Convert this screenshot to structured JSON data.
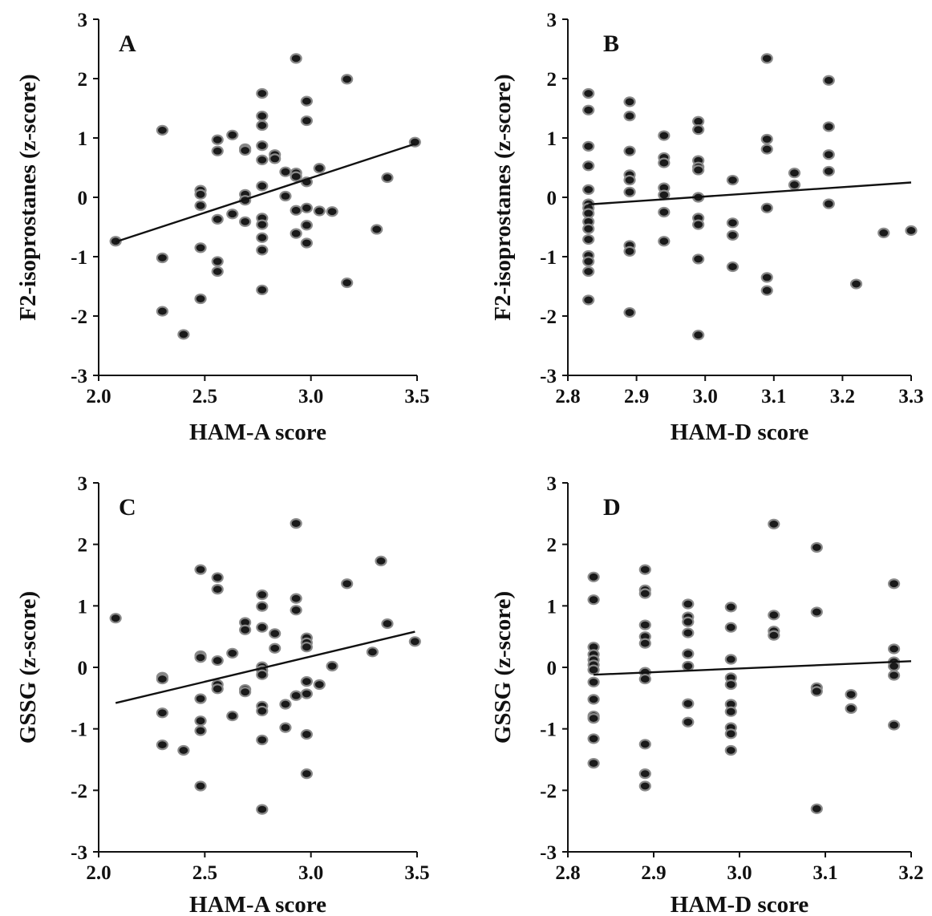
{
  "chart_data": [
    {
      "id": "A",
      "type": "scatter",
      "panel_label": "A",
      "xlabel": "HAM-A score",
      "ylabel": "F2-isoprostanes (z-score)",
      "xlim": [
        2.0,
        3.5
      ],
      "ylim": [
        -3,
        3
      ],
      "xticks": [
        "2.0",
        "2.5",
        "3.0",
        "3.5"
      ],
      "yticks": [
        "-3",
        "-2",
        "-1",
        "0",
        "1",
        "2",
        "3"
      ],
      "trend_line": [
        [
          2.08,
          -0.75
        ],
        [
          3.49,
          0.9
        ]
      ],
      "points": [
        [
          2.08,
          -0.74
        ],
        [
          2.3,
          1.13
        ],
        [
          2.3,
          -1.02
        ],
        [
          2.3,
          -1.92
        ],
        [
          2.4,
          -2.31
        ],
        [
          2.48,
          0.12
        ],
        [
          2.48,
          0.05
        ],
        [
          2.48,
          -0.14
        ],
        [
          2.48,
          -0.85
        ],
        [
          2.48,
          -1.71
        ],
        [
          2.56,
          0.97
        ],
        [
          2.56,
          0.78
        ],
        [
          2.56,
          -0.37
        ],
        [
          2.56,
          -1.08
        ],
        [
          2.56,
          -1.25
        ],
        [
          2.63,
          1.05
        ],
        [
          2.63,
          -0.28
        ],
        [
          2.69,
          0.82
        ],
        [
          2.69,
          0.79
        ],
        [
          2.69,
          0.05
        ],
        [
          2.69,
          -0.05
        ],
        [
          2.69,
          -0.41
        ],
        [
          2.77,
          1.75
        ],
        [
          2.77,
          1.37
        ],
        [
          2.77,
          1.21
        ],
        [
          2.77,
          0.87
        ],
        [
          2.77,
          0.63
        ],
        [
          2.77,
          0.19
        ],
        [
          2.77,
          -0.35
        ],
        [
          2.77,
          -0.46
        ],
        [
          2.77,
          -0.68
        ],
        [
          2.77,
          -0.89
        ],
        [
          2.77,
          -1.56
        ],
        [
          2.83,
          0.72
        ],
        [
          2.83,
          0.65
        ],
        [
          2.88,
          0.43
        ],
        [
          2.88,
          0.02
        ],
        [
          2.93,
          2.34
        ],
        [
          2.93,
          0.41
        ],
        [
          2.93,
          0.35
        ],
        [
          2.93,
          -0.22
        ],
        [
          2.93,
          -0.61
        ],
        [
          2.98,
          1.62
        ],
        [
          2.98,
          1.29
        ],
        [
          2.98,
          0.26
        ],
        [
          2.98,
          -0.18
        ],
        [
          2.98,
          -0.47
        ],
        [
          2.98,
          -0.77
        ],
        [
          3.04,
          0.49
        ],
        [
          3.04,
          -0.23
        ],
        [
          3.1,
          -0.24
        ],
        [
          3.17,
          1.99
        ],
        [
          3.17,
          -1.44
        ],
        [
          3.31,
          -0.54
        ],
        [
          3.36,
          0.33
        ],
        [
          3.49,
          0.93
        ]
      ]
    },
    {
      "id": "B",
      "type": "scatter",
      "panel_label": "B",
      "xlabel": "HAM-D score",
      "ylabel": "F2-isoprostanes (z-score)",
      "xlim": [
        2.8,
        3.3
      ],
      "ylim": [
        -3,
        3
      ],
      "xticks": [
        "2.8",
        "2.9",
        "3.0",
        "3.1",
        "3.2",
        "3.3"
      ],
      "yticks": [
        "-3",
        "-2",
        "-1",
        "0",
        "1",
        "2",
        "3"
      ],
      "trend_line": [
        [
          2.83,
          -0.12
        ],
        [
          3.3,
          0.25
        ]
      ],
      "points": [
        [
          2.83,
          1.75
        ],
        [
          2.83,
          1.47
        ],
        [
          2.83,
          0.86
        ],
        [
          2.83,
          0.53
        ],
        [
          2.83,
          0.13
        ],
        [
          2.83,
          -0.11
        ],
        [
          2.83,
          -0.18
        ],
        [
          2.83,
          -0.27
        ],
        [
          2.83,
          -0.41
        ],
        [
          2.83,
          -0.53
        ],
        [
          2.83,
          -0.71
        ],
        [
          2.83,
          -0.98
        ],
        [
          2.83,
          -1.08
        ],
        [
          2.83,
          -1.25
        ],
        [
          2.83,
          -1.73
        ],
        [
          2.89,
          1.61
        ],
        [
          2.89,
          1.37
        ],
        [
          2.89,
          0.78
        ],
        [
          2.89,
          0.38
        ],
        [
          2.89,
          0.29
        ],
        [
          2.89,
          0.09
        ],
        [
          2.89,
          -0.81
        ],
        [
          2.89,
          -0.91
        ],
        [
          2.89,
          -1.94
        ],
        [
          2.94,
          1.04
        ],
        [
          2.94,
          0.67
        ],
        [
          2.94,
          0.58
        ],
        [
          2.94,
          0.16
        ],
        [
          2.94,
          0.04
        ],
        [
          2.94,
          -0.25
        ],
        [
          2.94,
          -0.74
        ],
        [
          2.99,
          1.28
        ],
        [
          2.99,
          1.14
        ],
        [
          2.99,
          0.62
        ],
        [
          2.99,
          0.51
        ],
        [
          2.99,
          0.46
        ],
        [
          2.99,
          0.0
        ],
        [
          2.99,
          -0.35
        ],
        [
          2.99,
          -0.46
        ],
        [
          2.99,
          -1.04
        ],
        [
          2.99,
          -2.32
        ],
        [
          3.04,
          0.29
        ],
        [
          3.04,
          -0.43
        ],
        [
          3.04,
          -0.64
        ],
        [
          3.04,
          -1.17
        ],
        [
          3.09,
          2.34
        ],
        [
          3.09,
          0.98
        ],
        [
          3.09,
          0.81
        ],
        [
          3.09,
          -0.18
        ],
        [
          3.09,
          -1.35
        ],
        [
          3.09,
          -1.57
        ],
        [
          3.13,
          0.41
        ],
        [
          3.13,
          0.21
        ],
        [
          3.18,
          1.97
        ],
        [
          3.18,
          1.19
        ],
        [
          3.18,
          0.72
        ],
        [
          3.18,
          0.44
        ],
        [
          3.18,
          -0.11
        ],
        [
          3.22,
          -1.46
        ],
        [
          3.26,
          -0.6
        ],
        [
          3.3,
          -0.56
        ]
      ]
    },
    {
      "id": "C",
      "type": "scatter",
      "panel_label": "C",
      "xlabel": "HAM-A score",
      "ylabel": "GSSG (z-score)",
      "xlim": [
        2.0,
        3.5
      ],
      "ylim": [
        -3,
        3
      ],
      "xticks": [
        "2.0",
        "2.5",
        "3.0",
        "3.5"
      ],
      "yticks": [
        "-3",
        "-2",
        "-1",
        "0",
        "1",
        "2",
        "3"
      ],
      "trend_line": [
        [
          2.08,
          -0.58
        ],
        [
          3.49,
          0.58
        ]
      ],
      "points": [
        [
          2.08,
          0.8
        ],
        [
          2.3,
          -0.16
        ],
        [
          2.3,
          -0.19
        ],
        [
          2.3,
          -0.74
        ],
        [
          2.3,
          -1.26
        ],
        [
          2.4,
          -1.35
        ],
        [
          2.48,
          1.59
        ],
        [
          2.48,
          0.19
        ],
        [
          2.48,
          0.16
        ],
        [
          2.48,
          -0.51
        ],
        [
          2.48,
          -0.87
        ],
        [
          2.48,
          -1.03
        ],
        [
          2.48,
          -1.93
        ],
        [
          2.56,
          1.46
        ],
        [
          2.56,
          1.27
        ],
        [
          2.56,
          0.11
        ],
        [
          2.56,
          -0.28
        ],
        [
          2.56,
          -0.35
        ],
        [
          2.63,
          0.23
        ],
        [
          2.63,
          -0.79
        ],
        [
          2.69,
          0.73
        ],
        [
          2.69,
          0.61
        ],
        [
          2.69,
          -0.36
        ],
        [
          2.69,
          -0.4
        ],
        [
          2.77,
          1.18
        ],
        [
          2.77,
          0.99
        ],
        [
          2.77,
          0.65
        ],
        [
          2.77,
          0.01
        ],
        [
          2.77,
          -0.05
        ],
        [
          2.77,
          -0.12
        ],
        [
          2.77,
          -0.63
        ],
        [
          2.77,
          -0.71
        ],
        [
          2.77,
          -1.18
        ],
        [
          2.77,
          -2.31
        ],
        [
          2.83,
          0.55
        ],
        [
          2.83,
          0.31
        ],
        [
          2.88,
          -0.6
        ],
        [
          2.88,
          -0.98
        ],
        [
          2.93,
          2.34
        ],
        [
          2.93,
          1.12
        ],
        [
          2.93,
          0.93
        ],
        [
          2.93,
          -0.46
        ],
        [
          2.98,
          0.48
        ],
        [
          2.98,
          0.4
        ],
        [
          2.98,
          0.33
        ],
        [
          2.98,
          -0.23
        ],
        [
          2.98,
          -0.43
        ],
        [
          2.98,
          -1.09
        ],
        [
          2.98,
          -1.73
        ],
        [
          3.04,
          -0.28
        ],
        [
          3.1,
          0.02
        ],
        [
          3.17,
          1.36
        ],
        [
          3.29,
          0.25
        ],
        [
          3.33,
          1.73
        ],
        [
          3.36,
          0.71
        ],
        [
          3.49,
          0.42
        ]
      ]
    },
    {
      "id": "D",
      "type": "scatter",
      "panel_label": "D",
      "xlabel": "HAM-D score",
      "ylabel": "GSSG (z-score)",
      "xlim": [
        2.8,
        3.2
      ],
      "ylim": [
        -3,
        3
      ],
      "xticks": [
        "2.8",
        "2.9",
        "3.0",
        "3.1",
        "3.2"
      ],
      "yticks": [
        "-3",
        "-2",
        "-1",
        "0",
        "1",
        "2",
        "3"
      ],
      "trend_line": [
        [
          2.83,
          -0.12
        ],
        [
          3.2,
          0.1
        ]
      ],
      "points": [
        [
          2.83,
          1.47
        ],
        [
          2.83,
          1.1
        ],
        [
          2.83,
          0.33
        ],
        [
          2.83,
          0.21
        ],
        [
          2.83,
          0.12
        ],
        [
          2.83,
          0.04
        ],
        [
          2.83,
          -0.04
        ],
        [
          2.83,
          -0.24
        ],
        [
          2.83,
          -0.52
        ],
        [
          2.83,
          -0.79
        ],
        [
          2.83,
          -0.83
        ],
        [
          2.83,
          -1.16
        ],
        [
          2.83,
          -1.56
        ],
        [
          2.89,
          1.59
        ],
        [
          2.89,
          1.26
        ],
        [
          2.89,
          1.2
        ],
        [
          2.89,
          0.69
        ],
        [
          2.89,
          0.5
        ],
        [
          2.89,
          0.39
        ],
        [
          2.89,
          -0.08
        ],
        [
          2.89,
          -0.19
        ],
        [
          2.89,
          -1.25
        ],
        [
          2.89,
          -1.73
        ],
        [
          2.89,
          -1.93
        ],
        [
          2.94,
          1.03
        ],
        [
          2.94,
          0.82
        ],
        [
          2.94,
          0.74
        ],
        [
          2.94,
          0.56
        ],
        [
          2.94,
          0.22
        ],
        [
          2.94,
          0.02
        ],
        [
          2.94,
          -0.59
        ],
        [
          2.94,
          -0.89
        ],
        [
          2.99,
          0.98
        ],
        [
          2.99,
          0.65
        ],
        [
          2.99,
          0.13
        ],
        [
          2.99,
          -0.17
        ],
        [
          2.99,
          -0.28
        ],
        [
          2.99,
          -0.6
        ],
        [
          2.99,
          -0.72
        ],
        [
          2.99,
          -0.98
        ],
        [
          2.99,
          -1.08
        ],
        [
          2.99,
          -1.35
        ],
        [
          3.04,
          2.33
        ],
        [
          3.04,
          0.85
        ],
        [
          3.04,
          0.59
        ],
        [
          3.04,
          0.52
        ],
        [
          3.09,
          1.95
        ],
        [
          3.09,
          0.9
        ],
        [
          3.09,
          -0.33
        ],
        [
          3.09,
          -0.39
        ],
        [
          3.09,
          -2.3
        ],
        [
          3.13,
          -0.44
        ],
        [
          3.13,
          -0.67
        ],
        [
          3.18,
          1.36
        ],
        [
          3.18,
          0.3
        ],
        [
          3.18,
          0.09
        ],
        [
          3.18,
          0.02
        ],
        [
          3.18,
          -0.13
        ],
        [
          3.18,
          -0.94
        ]
      ]
    }
  ]
}
